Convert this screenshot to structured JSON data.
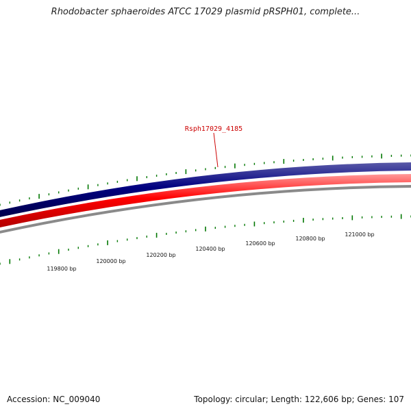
{
  "title": "Rhodobacter sphaeroides ATCC 17029 plasmid pRSPH01, complete...",
  "footer": {
    "accession": "Accession: NC_009040",
    "summary": "Topology: circular; Length: 122,606 bp; Genes: 107"
  },
  "gene_label": "Rsph17029_4185",
  "ruler_labels": [
    "119800 bp",
    "120000 bp",
    "120200 bp",
    "120400 bp",
    "120600 bp",
    "120800 bp",
    "121000 bp"
  ],
  "colors": {
    "forward_strand": "#000080",
    "reverse_strand": "#ff0000",
    "backbone": "#808080",
    "ticks": "#007700",
    "gene_label": "#cc0000"
  }
}
